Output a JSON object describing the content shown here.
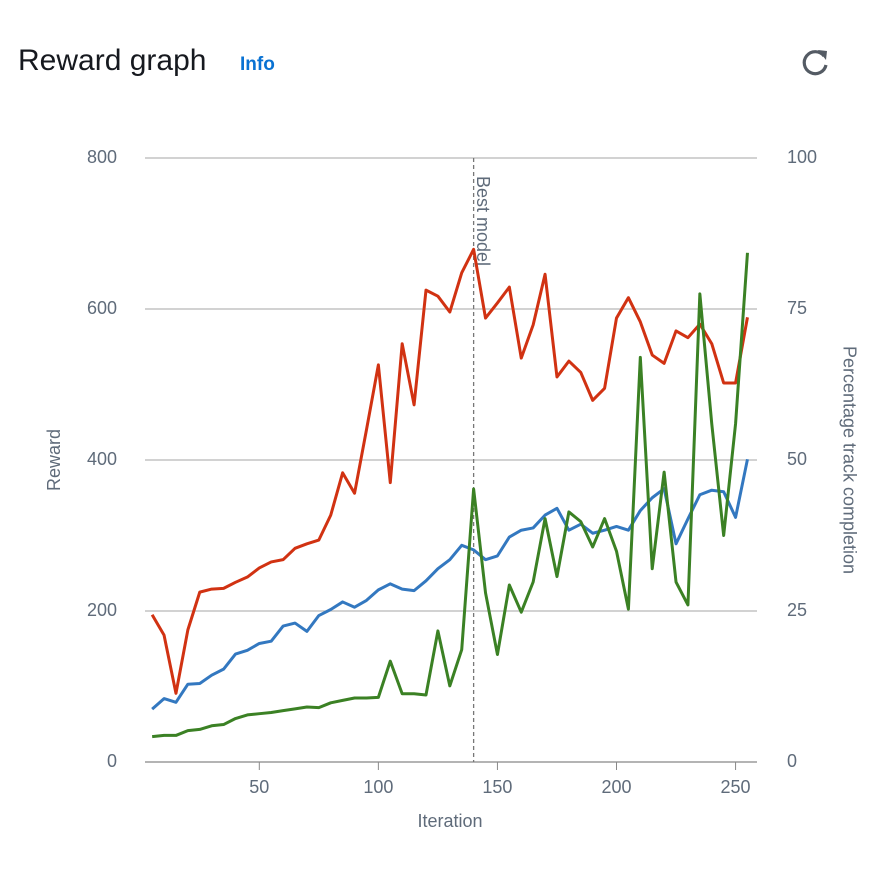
{
  "header": {
    "title": "Reward graph",
    "info": "Info"
  },
  "chart_data": {
    "type": "line",
    "x_label": "Iteration",
    "y_label": "Reward",
    "y2_label": "Percentage track completion",
    "x": [
      5,
      10,
      15,
      20,
      25,
      30,
      35,
      40,
      45,
      50,
      55,
      60,
      65,
      70,
      75,
      80,
      85,
      90,
      95,
      100,
      105,
      110,
      115,
      120,
      125,
      130,
      135,
      140,
      145,
      150,
      155,
      160,
      165,
      170,
      175,
      180,
      185,
      190,
      195,
      200,
      205,
      210,
      215,
      220,
      225,
      230,
      235,
      240,
      245,
      250,
      255
    ],
    "series": [
      {
        "color": "#d13212",
        "values": [
          195,
          168,
          91,
          175,
          225,
          229,
          230,
          238,
          245,
          257,
          265,
          268,
          283,
          289,
          294,
          327,
          383,
          356,
          440,
          526,
          370,
          554,
          473,
          625,
          617,
          596,
          648,
          679,
          588,
          608,
          629,
          535,
          579,
          646,
          510,
          531,
          516,
          479,
          495,
          588,
          615,
          583,
          539,
          528,
          571,
          562,
          580,
          554,
          502,
          502,
          589
        ]
      },
      {
        "color": "#3378c0",
        "values": [
          70,
          84,
          79,
          103,
          104,
          115,
          123,
          143,
          148,
          157,
          160,
          180,
          184,
          173,
          194,
          202,
          212,
          205,
          214,
          228,
          236,
          229,
          227,
          240,
          256,
          268,
          287,
          281,
          268,
          273,
          298,
          307,
          310,
          327,
          336,
          307,
          315,
          303,
          307,
          312,
          307,
          333,
          350,
          362,
          289,
          322,
          354,
          360,
          358,
          324,
          401
        ]
      },
      {
        "color": "#3b8124",
        "axis": "y2",
        "values": [
          4.2,
          4.4,
          4.4,
          5.2,
          5.4,
          6.0,
          6.2,
          7.2,
          7.8,
          8.0,
          8.2,
          8.5,
          8.8,
          9.1,
          9.0,
          9.8,
          10.2,
          10.6,
          10.6,
          10.7,
          16.7,
          11.3,
          11.3,
          11.1,
          21.7,
          12.6,
          18.6,
          45.2,
          28,
          17.8,
          29.3,
          24.8,
          29.8,
          40.3,
          30.7,
          41.4,
          39.8,
          35.6,
          40.3,
          34.9,
          25.3,
          67,
          32,
          48,
          29.8,
          26,
          77.5,
          56,
          37.5,
          56,
          84.3
        ]
      }
    ],
    "annotations": [
      {
        "x": 140,
        "text": "Best model"
      }
    ],
    "xlim": [
      2,
      259
    ],
    "xticks": [
      50,
      100,
      150,
      200,
      250
    ],
    "ylim": [
      0,
      800
    ],
    "yticks": [
      0,
      200,
      400,
      600,
      800
    ],
    "y2lim": [
      0,
      100
    ],
    "y2ticks": [
      0,
      25,
      50,
      75,
      100
    ],
    "grid": true
  }
}
